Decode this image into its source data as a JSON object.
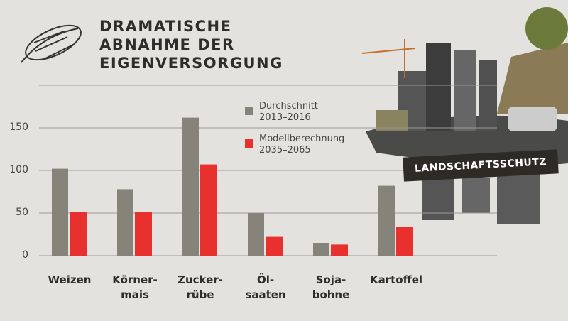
{
  "chart_data": {
    "type": "bar",
    "title": "DRAMATISCHE\nABNAHME DER\nEIGENVERSORGUNG",
    "annotation": "LANDSCHAFTSSCHUTZ",
    "categories": [
      "Weizen",
      "Körner-\nmais",
      "Zucker-\nrübe",
      "Öl-\nsaaten",
      "Soja-\nbohne",
      "Kartoffel"
    ],
    "series": [
      {
        "name": "Durchschnitt\n2013–2016",
        "color": "#85837a",
        "values": [
          102,
          78,
          162,
          50,
          15,
          82
        ]
      },
      {
        "name": "Modellberechnung\n2035–2065",
        "color": "#e8302f",
        "values": [
          51,
          51,
          107,
          22,
          13,
          34
        ]
      }
    ],
    "ylim": [
      0,
      200
    ],
    "yticks": [
      0,
      50,
      100,
      150
    ],
    "grid": true
  }
}
